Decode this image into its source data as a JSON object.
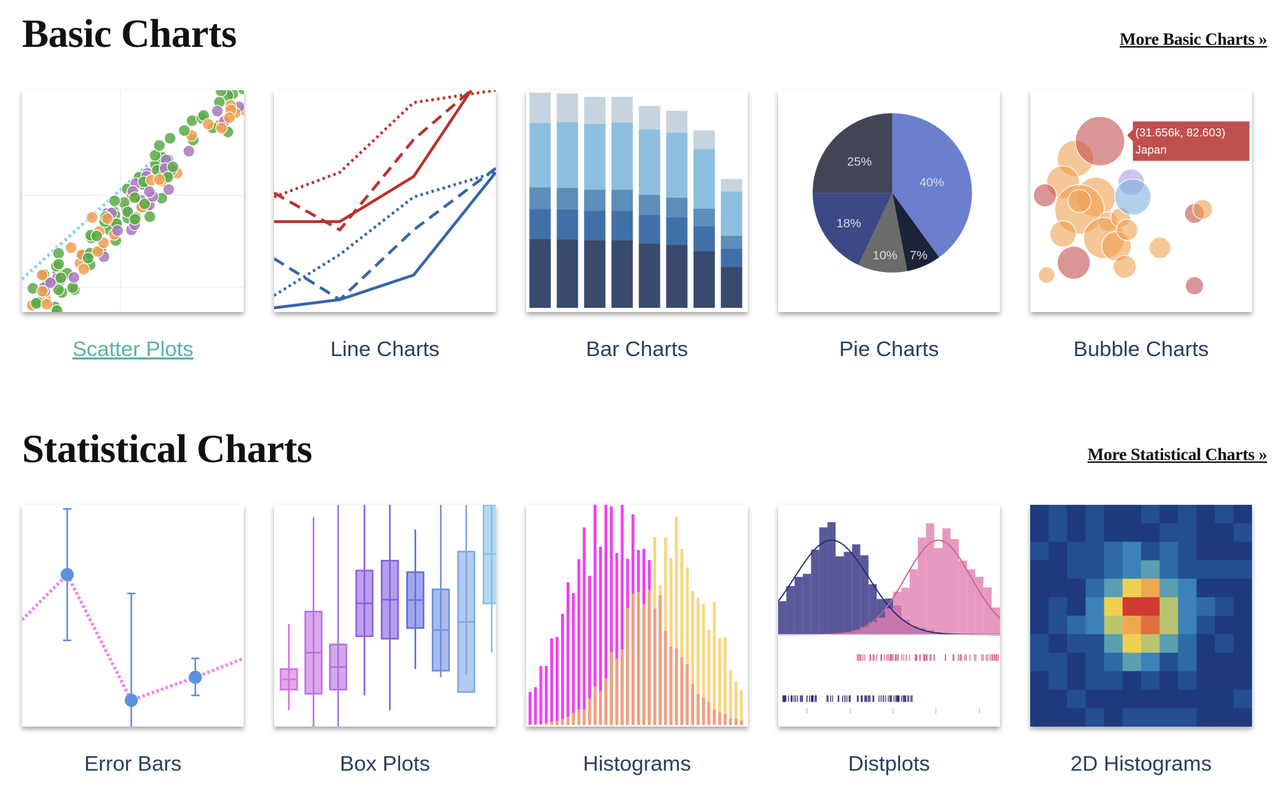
{
  "sections": [
    {
      "title": "Basic Charts",
      "more_link": "More Basic Charts »",
      "items": [
        {
          "label": "Scatter Plots"
        },
        {
          "label": "Line Charts"
        },
        {
          "label": "Bar Charts"
        },
        {
          "label": "Pie Charts",
          "slices": [
            "40%",
            "7%",
            "10%",
            "18%",
            "25%"
          ]
        },
        {
          "label": "Bubble Charts",
          "tooltip_value": "(31.656k, 82.603)",
          "tooltip_name": "Japan"
        }
      ]
    },
    {
      "title": "Statistical Charts",
      "more_link": "More Statistical Charts »",
      "items": [
        {
          "label": "Error Bars"
        },
        {
          "label": "Box Plots"
        },
        {
          "label": "Histograms"
        },
        {
          "label": "Distplots"
        },
        {
          "label": "2D Histograms"
        }
      ]
    }
  ],
  "colors": {
    "link_active": "#5fb0a8",
    "label": "#2a3f5f",
    "tooltip": "#c0504d"
  }
}
